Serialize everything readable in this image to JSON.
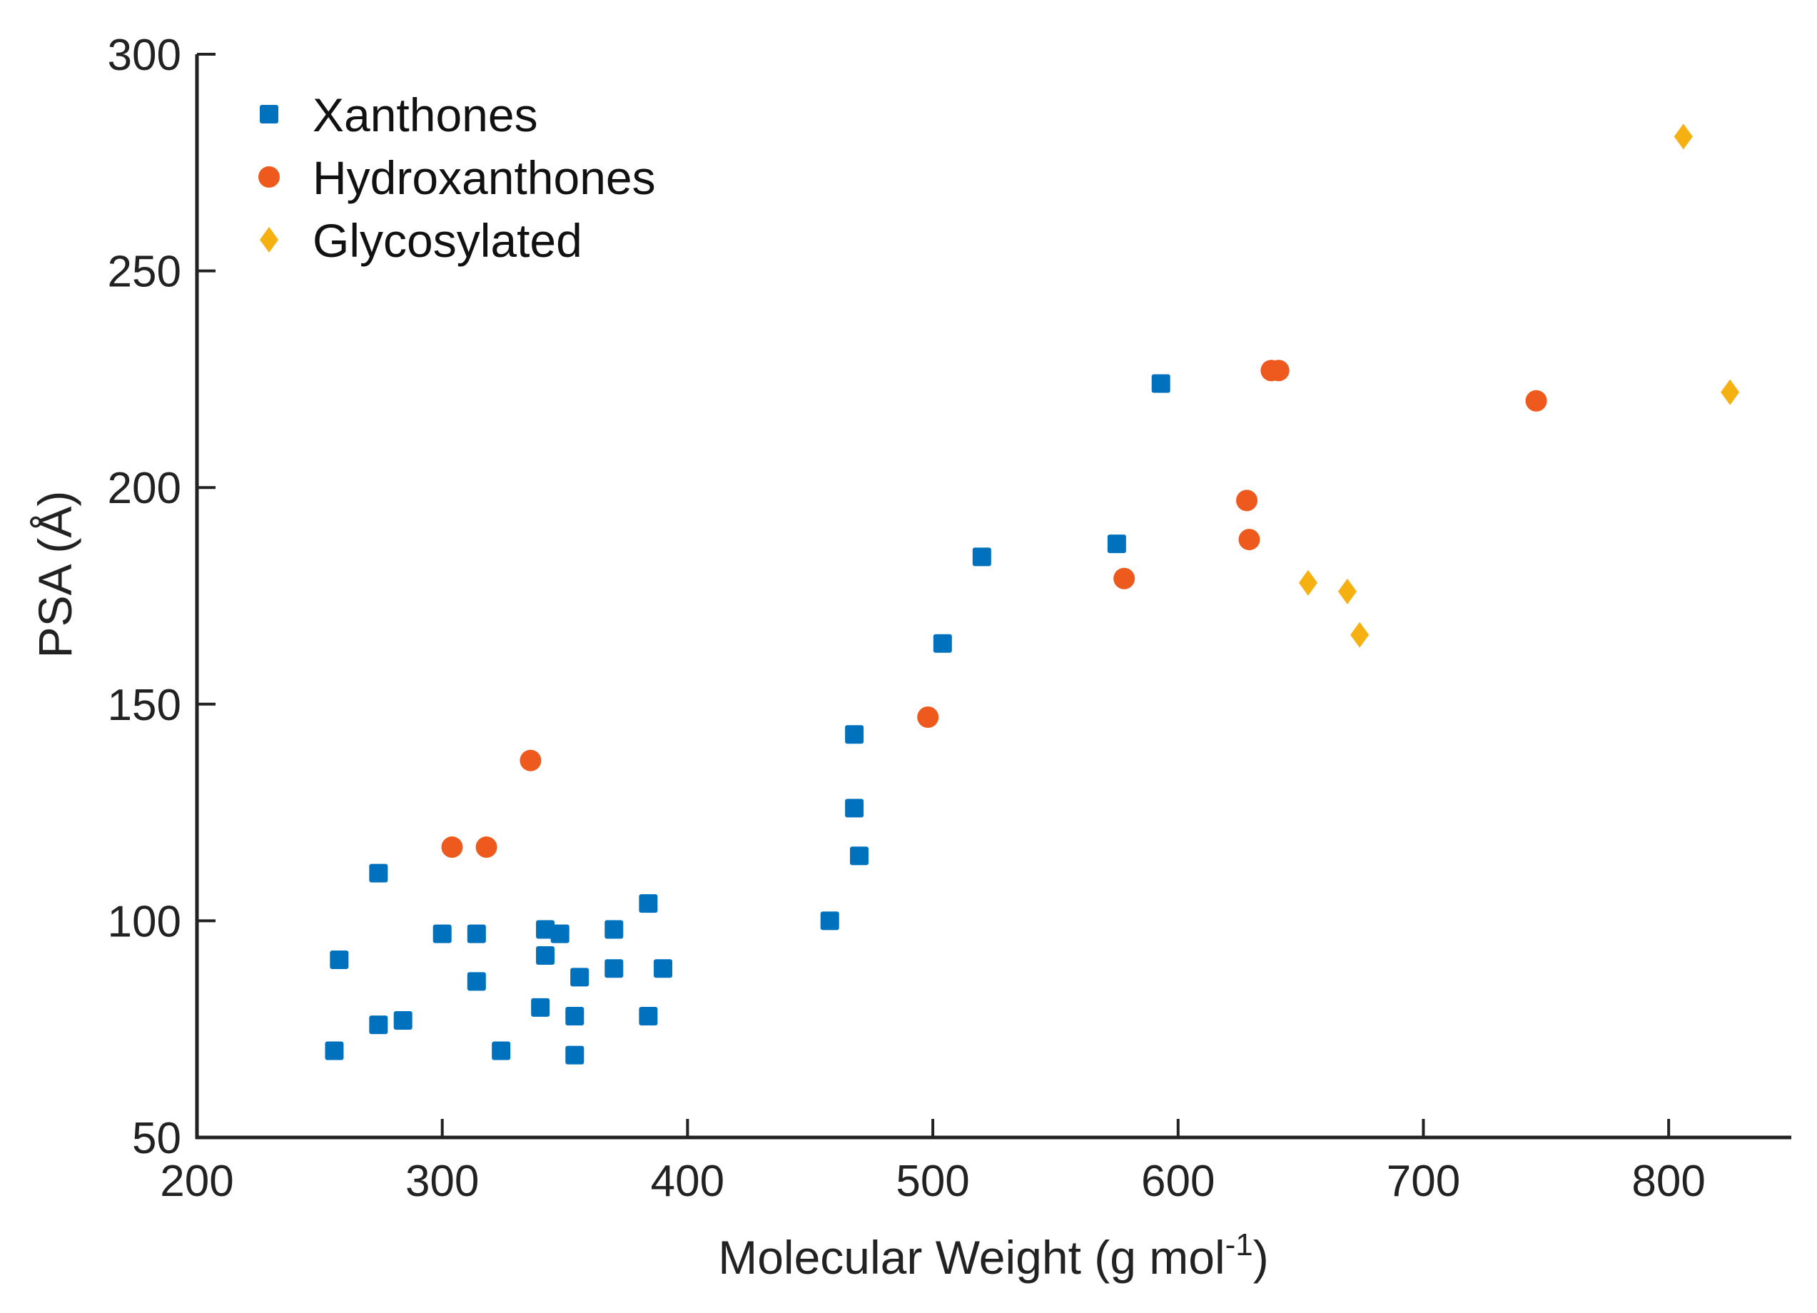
{
  "chart_data": {
    "type": "scatter",
    "title": "",
    "xlabel": "Molecular  Weight (g mol",
    "xlabel_superscript": "-1",
    "xlabel_suffix": ")",
    "ylabel": "PSA (Å)",
    "xlim": [
      200,
      850
    ],
    "ylim": [
      50,
      300
    ],
    "xticks": [
      200,
      300,
      400,
      500,
      600,
      700,
      800
    ],
    "yticks": [
      50,
      100,
      150,
      200,
      250,
      300
    ],
    "grid": false,
    "legend_position": "top-left",
    "series": [
      {
        "name": "Xanthones",
        "marker": "square",
        "color": "#0072BD",
        "points": [
          [
            256,
            70
          ],
          [
            258,
            91
          ],
          [
            274,
            111
          ],
          [
            274,
            76
          ],
          [
            284,
            77
          ],
          [
            300,
            97
          ],
          [
            314,
            97
          ],
          [
            314,
            86
          ],
          [
            324,
            70
          ],
          [
            340,
            80
          ],
          [
            342,
            98
          ],
          [
            342,
            92
          ],
          [
            348,
            97
          ],
          [
            354,
            78
          ],
          [
            354,
            69
          ],
          [
            356,
            87
          ],
          [
            370,
            98
          ],
          [
            370,
            89
          ],
          [
            384,
            104
          ],
          [
            384,
            78
          ],
          [
            390,
            89
          ],
          [
            458,
            100
          ],
          [
            468,
            143
          ],
          [
            468,
            126
          ],
          [
            470,
            115
          ],
          [
            504,
            164
          ],
          [
            520,
            184
          ],
          [
            575,
            187
          ],
          [
            593,
            224
          ]
        ]
      },
      {
        "name": "Hydroxanthones",
        "marker": "circle",
        "color": "#EE5A1D",
        "points": [
          [
            304,
            117
          ],
          [
            318,
            117
          ],
          [
            336,
            137
          ],
          [
            498,
            147
          ],
          [
            578,
            179
          ],
          [
            628,
            197
          ],
          [
            629,
            188
          ],
          [
            638,
            227
          ],
          [
            641,
            227
          ],
          [
            746,
            220
          ]
        ]
      },
      {
        "name": "Glycosylated",
        "marker": "diamond",
        "color": "#F5B112",
        "points": [
          [
            653,
            178
          ],
          [
            669,
            176
          ],
          [
            674,
            166
          ],
          [
            806,
            281
          ],
          [
            825,
            222
          ]
        ]
      }
    ]
  }
}
